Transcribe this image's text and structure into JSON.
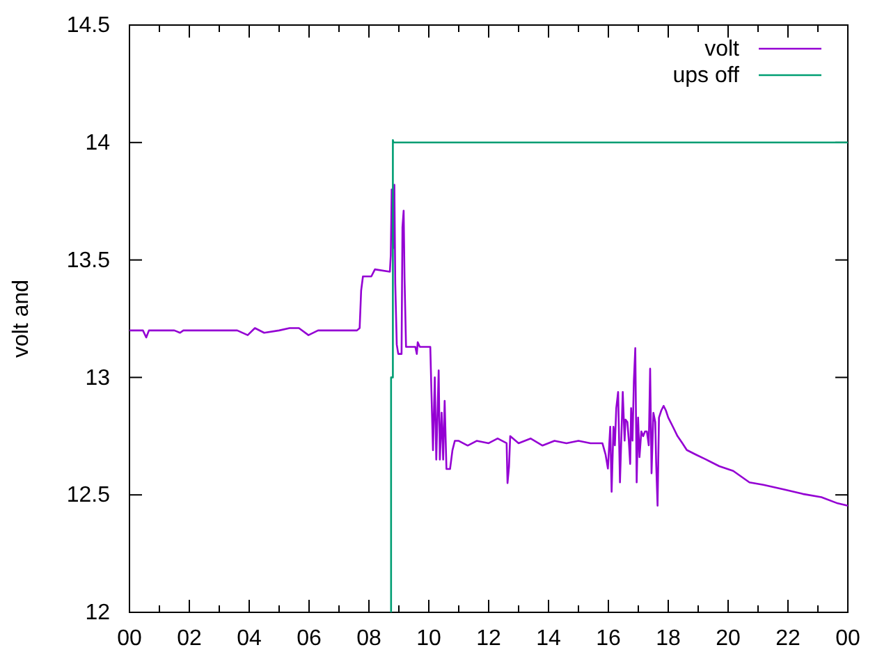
{
  "chart_data": {
    "type": "line",
    "ylabel": "volt and",
    "legend": "top right",
    "grid": false,
    "xlim": [
      0,
      24
    ],
    "ylim": [
      12,
      14.5
    ],
    "xticks": [
      {
        "value": 0,
        "label": "00"
      },
      {
        "value": 1,
        "label": null
      },
      {
        "value": 2,
        "label": "02"
      },
      {
        "value": 3,
        "label": null
      },
      {
        "value": 4,
        "label": "04"
      },
      {
        "value": 5,
        "label": null
      },
      {
        "value": 6,
        "label": "06"
      },
      {
        "value": 7,
        "label": null
      },
      {
        "value": 8,
        "label": "08"
      },
      {
        "value": 9,
        "label": null
      },
      {
        "value": 10,
        "label": "10"
      },
      {
        "value": 11,
        "label": null
      },
      {
        "value": 12,
        "label": "12"
      },
      {
        "value": 13,
        "label": null
      },
      {
        "value": 14,
        "label": "14"
      },
      {
        "value": 15,
        "label": null
      },
      {
        "value": 16,
        "label": "16"
      },
      {
        "value": 17,
        "label": null
      },
      {
        "value": 18,
        "label": "18"
      },
      {
        "value": 19,
        "label": null
      },
      {
        "value": 20,
        "label": "20"
      },
      {
        "value": 21,
        "label": null
      },
      {
        "value": 22,
        "label": "22"
      },
      {
        "value": 23,
        "label": null
      },
      {
        "value": 24,
        "label": "00"
      }
    ],
    "yticks": [
      12,
      12.5,
      13,
      13.5,
      14,
      14.5
    ],
    "series": [
      {
        "name": "volt",
        "color": "#9400d3",
        "x": [
          0,
          0.45,
          0.56,
          0.65,
          1.0,
          1.5,
          1.69,
          1.8,
          2.5,
          3.0,
          3.6,
          3.95,
          4.19,
          4.5,
          5.0,
          5.35,
          5.66,
          5.98,
          6.3,
          7.15,
          7.6,
          7.69,
          7.74,
          7.8,
          8.08,
          8.2,
          8.7,
          8.73,
          8.76,
          8.81,
          8.85,
          8.88,
          8.93,
          8.98,
          9.09,
          9.12,
          9.16,
          9.19,
          9.24,
          9.55,
          9.6,
          9.63,
          9.7,
          10.05,
          10.09,
          10.14,
          10.2,
          10.25,
          10.33,
          10.37,
          10.43,
          10.48,
          10.53,
          10.59,
          10.71,
          10.79,
          10.87,
          11.0,
          11.3,
          11.6,
          12.0,
          12.3,
          12.6,
          12.63,
          12.68,
          12.72,
          13.0,
          13.4,
          13.8,
          14.2,
          14.6,
          15.0,
          15.4,
          15.8,
          15.907,
          15.984,
          16.062,
          16.108,
          16.17,
          16.217,
          16.263,
          16.325,
          16.387,
          16.449,
          16.48,
          16.542,
          16.573,
          16.635,
          16.682,
          16.728,
          16.759,
          16.806,
          16.852,
          16.899,
          16.945,
          16.992,
          17.039,
          17.1,
          17.162,
          17.224,
          17.286,
          17.349,
          17.395,
          17.442,
          17.504,
          17.566,
          17.597,
          17.643,
          17.69,
          17.767,
          17.845,
          17.922,
          18.0,
          18.077,
          18.155,
          18.31,
          18.465,
          18.62,
          18.93,
          19.24,
          19.705,
          20.17,
          20.713,
          21.178,
          21.876,
          22.496,
          23.116,
          23.659,
          24.0
        ],
        "values": [
          13.2,
          13.2,
          13.17,
          13.2,
          13.2,
          13.2,
          13.19,
          13.2,
          13.2,
          13.2,
          13.2,
          13.18,
          13.21,
          13.19,
          13.2,
          13.21,
          13.21,
          13.18,
          13.2,
          13.2,
          13.2,
          13.21,
          13.37,
          13.43,
          13.43,
          13.46,
          13.45,
          13.52,
          13.8,
          13.55,
          13.82,
          13.4,
          13.14,
          13.1,
          13.1,
          13.64,
          13.71,
          13.42,
          13.13,
          13.13,
          13.1,
          13.15,
          13.13,
          13.13,
          12.93,
          12.69,
          13.0,
          12.65,
          13.03,
          12.65,
          12.85,
          12.65,
          12.9,
          12.61,
          12.61,
          12.69,
          12.73,
          12.73,
          12.71,
          12.73,
          12.72,
          12.74,
          12.72,
          12.55,
          12.62,
          12.75,
          12.72,
          12.74,
          12.71,
          12.73,
          12.72,
          12.73,
          12.72,
          12.72,
          12.671,
          12.612,
          12.79,
          12.513,
          12.79,
          12.711,
          12.869,
          12.938,
          12.553,
          12.81,
          12.938,
          12.731,
          12.82,
          12.81,
          12.731,
          12.632,
          12.869,
          12.731,
          12.987,
          13.125,
          12.553,
          12.829,
          12.661,
          12.77,
          12.75,
          12.77,
          12.77,
          12.711,
          13.037,
          12.592,
          12.849,
          12.81,
          12.632,
          12.454,
          12.829,
          12.859,
          12.879,
          12.859,
          12.829,
          12.81,
          12.79,
          12.75,
          12.721,
          12.691,
          12.671,
          12.652,
          12.622,
          12.602,
          12.553,
          12.543,
          12.523,
          12.504,
          12.49,
          12.464,
          12.454
        ]
      },
      {
        "name": "ups off",
        "color": "#009e73",
        "x": [
          8.74,
          8.74,
          8.8,
          8.8,
          8.82,
          24
        ],
        "values": [
          12,
          13.0,
          13.0,
          14.01,
          14.0,
          14.0
        ]
      }
    ]
  }
}
